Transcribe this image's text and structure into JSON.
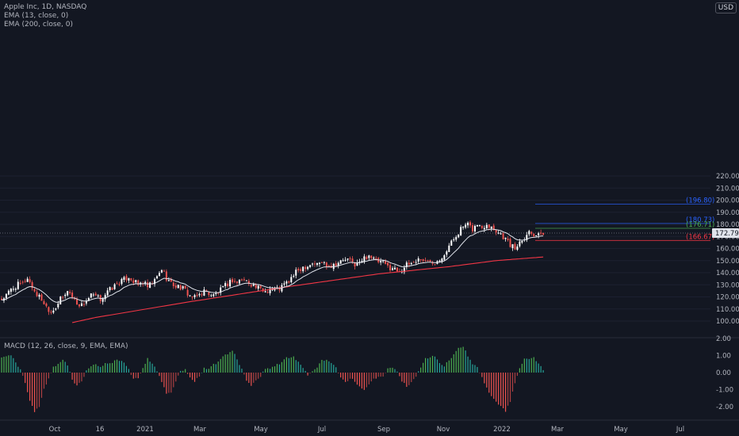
{
  "header": {
    "symbol": "Apple Inc, 1D, NASDAQ",
    "indicators": [
      "EMA (13, close, 0)",
      "EMA (200, close, 0)"
    ],
    "currency": "USD"
  },
  "macd_panel": {
    "label": "MACD (12, 26, close, 9, EMA, EMA)"
  },
  "colors": {
    "background": "#131722",
    "up": "#ffffff",
    "down": "#ef5350",
    "ema200": "#f23645",
    "ema13": "#e0e3eb",
    "macd_pos": "#26a69a",
    "macd_pos_strong": "#4caf50",
    "macd_neg": "#ef5350",
    "level_blue": "#2962ff",
    "level_green": "#4caf50",
    "level_red": "#f23645",
    "axis_text": "#b2b5be"
  },
  "chart_data": [
    {
      "type": "candlestick",
      "title": "Apple Inc, 1D, NASDAQ",
      "y_ticks": [
        "100.00",
        "110.00",
        "120.00",
        "130.00",
        "140.00",
        "150.00",
        "160.00",
        "170.00",
        "180.00",
        "190.00",
        "200.00",
        "210.00",
        "220.00"
      ],
      "ylim": [
        94,
        228
      ],
      "x_ticks": [
        "Oct",
        "16",
        "2021",
        "Mar",
        "May",
        "Jul",
        "Sep",
        "Nov",
        "2022",
        "Mar",
        "May",
        "Jul"
      ],
      "current_price": "172.79",
      "price_path": [
        [
          0,
          118
        ],
        [
          2,
          121
        ],
        [
          4,
          126
        ],
        [
          7,
          130
        ],
        [
          9,
          131
        ],
        [
          11,
          136
        ],
        [
          13,
          128
        ],
        [
          15,
          122
        ],
        [
          17,
          118
        ],
        [
          19,
          112
        ],
        [
          21,
          108
        ],
        [
          23,
          112
        ],
        [
          25,
          118
        ],
        [
          27,
          121
        ],
        [
          28,
          126
        ],
        [
          30,
          120
        ],
        [
          32,
          115
        ],
        [
          34,
          113
        ],
        [
          36,
          117
        ],
        [
          38,
          121
        ],
        [
          40,
          120
        ],
        [
          42,
          118
        ],
        [
          44,
          122
        ],
        [
          46,
          126
        ],
        [
          48,
          129
        ],
        [
          50,
          132
        ],
        [
          52,
          134
        ],
        [
          54,
          137
        ],
        [
          56,
          133
        ],
        [
          58,
          130
        ],
        [
          60,
          132
        ],
        [
          62,
          128
        ],
        [
          64,
          131
        ],
        [
          66,
          136
        ],
        [
          68,
          143
        ],
        [
          70,
          136
        ],
        [
          72,
          131
        ],
        [
          74,
          129
        ],
        [
          76,
          128
        ],
        [
          78,
          125
        ],
        [
          80,
          121
        ],
        [
          82,
          119
        ],
        [
          84,
          122
        ],
        [
          86,
          125
        ],
        [
          88,
          123
        ],
        [
          90,
          121
        ],
        [
          92,
          124
        ],
        [
          94,
          127
        ],
        [
          96,
          131
        ],
        [
          98,
          134
        ],
        [
          100,
          132
        ],
        [
          102,
          135
        ],
        [
          104,
          133
        ],
        [
          106,
          131
        ],
        [
          108,
          128
        ],
        [
          110,
          126
        ],
        [
          112,
          125
        ],
        [
          114,
          127
        ],
        [
          116,
          126
        ],
        [
          118,
          127
        ],
        [
          120,
          130
        ],
        [
          122,
          133
        ],
        [
          124,
          138
        ],
        [
          126,
          142
        ],
        [
          128,
          145
        ],
        [
          130,
          146
        ],
        [
          132,
          148
        ],
        [
          134,
          147
        ],
        [
          136,
          149
        ],
        [
          138,
          147
        ],
        [
          140,
          146
        ],
        [
          142,
          148
        ],
        [
          144,
          149
        ],
        [
          146,
          151
        ],
        [
          148,
          150
        ],
        [
          150,
          147
        ],
        [
          152,
          148
        ],
        [
          154,
          152
        ],
        [
          156,
          155
        ],
        [
          158,
          151
        ],
        [
          160,
          149
        ],
        [
          162,
          148
        ],
        [
          164,
          145
        ],
        [
          166,
          144
        ],
        [
          168,
          142
        ],
        [
          170,
          143
        ],
        [
          172,
          146
        ],
        [
          174,
          148
        ],
        [
          176,
          150
        ],
        [
          178,
          152
        ],
        [
          180,
          149
        ],
        [
          182,
          150
        ],
        [
          184,
          149
        ],
        [
          186,
          152
        ],
        [
          188,
          156
        ],
        [
          190,
          162
        ],
        [
          192,
          168
        ],
        [
          194,
          174
        ],
        [
          196,
          178
        ],
        [
          198,
          179
        ],
        [
          200,
          176
        ],
        [
          202,
          180
        ],
        [
          204,
          177
        ],
        [
          206,
          181
        ],
        [
          208,
          178
        ],
        [
          210,
          175
        ],
        [
          212,
          172
        ],
        [
          214,
          168
        ],
        [
          216,
          163
        ],
        [
          218,
          160
        ],
        [
          220,
          166
        ],
        [
          222,
          170
        ],
        [
          224,
          174
        ],
        [
          226,
          172
        ],
        [
          228,
          173
        ],
        [
          229,
          170
        ],
        [
          230,
          173
        ]
      ],
      "ema200_path": [
        [
          0,
          86
        ],
        [
          40,
          103
        ],
        [
          80,
          116
        ],
        [
          120,
          128
        ],
        [
          160,
          139
        ],
        [
          190,
          145
        ],
        [
          210,
          150
        ],
        [
          230,
          153
        ]
      ],
      "levels": [
        {
          "value": 196.8,
          "label": "(196.80)",
          "color": "#2962ff"
        },
        {
          "value": 180.73,
          "label": "(180.73)",
          "color": "#2962ff"
        },
        {
          "value": 176.71,
          "label": "(176.71)",
          "color": "#4caf50"
        },
        {
          "value": 166.67,
          "label": "(166.67)",
          "color": "#f23645"
        }
      ]
    },
    {
      "type": "histogram",
      "title": "MACD (12, 26, close, 9, EMA, EMA)",
      "y_ticks": [
        "2.00",
        "1.00",
        "0.00",
        "-1.00",
        "-2.00"
      ],
      "ylim": [
        -2.7,
        2.2
      ],
      "hist_path": [
        [
          0,
          0.9
        ],
        [
          4,
          1.0
        ],
        [
          8,
          0.2
        ],
        [
          10,
          -0.6
        ],
        [
          12,
          -1.6
        ],
        [
          14,
          -2.3
        ],
        [
          16,
          -2.0
        ],
        [
          18,
          -1.0
        ],
        [
          20,
          -0.3
        ],
        [
          22,
          0.3
        ],
        [
          24,
          0.5
        ],
        [
          26,
          0.8
        ],
        [
          28,
          0.4
        ],
        [
          30,
          -0.4
        ],
        [
          32,
          -0.8
        ],
        [
          34,
          -0.5
        ],
        [
          36,
          0.1
        ],
        [
          38,
          0.4
        ],
        [
          40,
          0.5
        ],
        [
          42,
          0.3
        ],
        [
          44,
          0.6
        ],
        [
          46,
          0.5
        ],
        [
          48,
          0.7
        ],
        [
          50,
          0.7
        ],
        [
          52,
          0.6
        ],
        [
          54,
          0.2
        ],
        [
          56,
          -0.4
        ],
        [
          58,
          -0.3
        ],
        [
          60,
          0.3
        ],
        [
          62,
          0.8
        ],
        [
          64,
          0.5
        ],
        [
          66,
          0.1
        ],
        [
          68,
          -0.6
        ],
        [
          70,
          -1.2
        ],
        [
          72,
          -1.2
        ],
        [
          74,
          -0.5
        ],
        [
          76,
          0.1
        ],
        [
          78,
          0.2
        ],
        [
          80,
          -0.3
        ],
        [
          82,
          -0.5
        ],
        [
          84,
          -0.2
        ],
        [
          86,
          0.3
        ],
        [
          88,
          0.2
        ],
        [
          90,
          0.5
        ],
        [
          92,
          0.6
        ],
        [
          94,
          1.0
        ],
        [
          96,
          1.1
        ],
        [
          98,
          1.3
        ],
        [
          100,
          0.8
        ],
        [
          102,
          0.2
        ],
        [
          104,
          -0.5
        ],
        [
          106,
          -0.8
        ],
        [
          108,
          -0.5
        ],
        [
          110,
          -0.2
        ],
        [
          112,
          0.2
        ],
        [
          114,
          0.2
        ],
        [
          116,
          0.4
        ],
        [
          118,
          0.5
        ],
        [
          120,
          0.8
        ],
        [
          122,
          0.9
        ],
        [
          124,
          0.9
        ],
        [
          126,
          0.6
        ],
        [
          128,
          0.3
        ],
        [
          130,
          -0.2
        ],
        [
          132,
          0.1
        ],
        [
          134,
          0.3
        ],
        [
          136,
          0.7
        ],
        [
          138,
          0.7
        ],
        [
          140,
          0.6
        ],
        [
          142,
          0.3
        ],
        [
          144,
          -0.3
        ],
        [
          146,
          -0.6
        ],
        [
          148,
          -0.3
        ],
        [
          150,
          -0.5
        ],
        [
          152,
          -0.8
        ],
        [
          154,
          -1.0
        ],
        [
          156,
          -0.7
        ],
        [
          158,
          -0.4
        ],
        [
          160,
          -0.3
        ],
        [
          162,
          -0.2
        ],
        [
          164,
          0.2
        ],
        [
          166,
          0.3
        ],
        [
          168,
          0.1
        ],
        [
          170,
          -0.5
        ],
        [
          172,
          -0.8
        ],
        [
          174,
          -0.6
        ],
        [
          176,
          -0.2
        ],
        [
          178,
          0.3
        ],
        [
          180,
          0.8
        ],
        [
          182,
          0.9
        ],
        [
          184,
          1.0
        ],
        [
          186,
          0.6
        ],
        [
          188,
          0.4
        ],
        [
          190,
          0.7
        ],
        [
          192,
          1.1
        ],
        [
          194,
          1.4
        ],
        [
          196,
          1.5
        ],
        [
          198,
          1.0
        ],
        [
          200,
          0.5
        ],
        [
          202,
          0.3
        ],
        [
          204,
          -0.3
        ],
        [
          206,
          -0.9
        ],
        [
          208,
          -1.4
        ],
        [
          210,
          -1.7
        ],
        [
          212,
          -2.0
        ],
        [
          214,
          -2.3
        ],
        [
          216,
          -1.7
        ],
        [
          218,
          -0.6
        ],
        [
          220,
          0.3
        ],
        [
          222,
          0.8
        ],
        [
          224,
          0.8
        ],
        [
          226,
          0.9
        ],
        [
          228,
          0.5
        ],
        [
          230,
          0.2
        ]
      ]
    }
  ]
}
